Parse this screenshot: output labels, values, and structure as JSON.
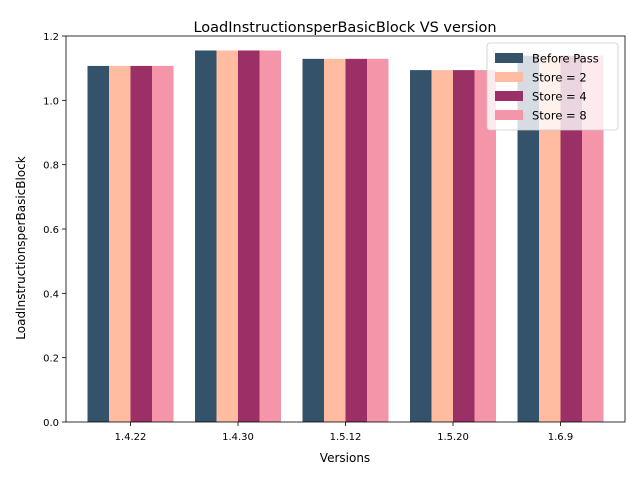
{
  "chart_data": {
    "type": "bar",
    "title": "LoadInstructionsperBasicBlock VS version",
    "xlabel": "Versions",
    "ylabel": "LoadInstructionsperBasicBlock",
    "categories": [
      "1.4.22",
      "1.4.30",
      "1.5.12",
      "1.5.20",
      "1.6.9"
    ],
    "ylim": [
      0,
      1.2
    ],
    "yticks": [
      "0.0",
      "0.2",
      "0.4",
      "0.6",
      "0.8",
      "1.0",
      "1.2"
    ],
    "grid": false,
    "legend_position": "top-right",
    "series": [
      {
        "name": "Before Pass",
        "color": "#34536a",
        "values": [
          1.107,
          1.155,
          1.129,
          1.094,
          1.139
        ]
      },
      {
        "name": "Store = 2",
        "color": "#ffbca1",
        "values": [
          1.107,
          1.155,
          1.129,
          1.094,
          1.139
        ]
      },
      {
        "name": "Store = 4",
        "color": "#9a3065",
        "values": [
          1.107,
          1.155,
          1.129,
          1.094,
          1.139
        ]
      },
      {
        "name": "Store = 8",
        "color": "#f495a9",
        "values": [
          1.107,
          1.155,
          1.129,
          1.094,
          1.139
        ]
      }
    ]
  }
}
